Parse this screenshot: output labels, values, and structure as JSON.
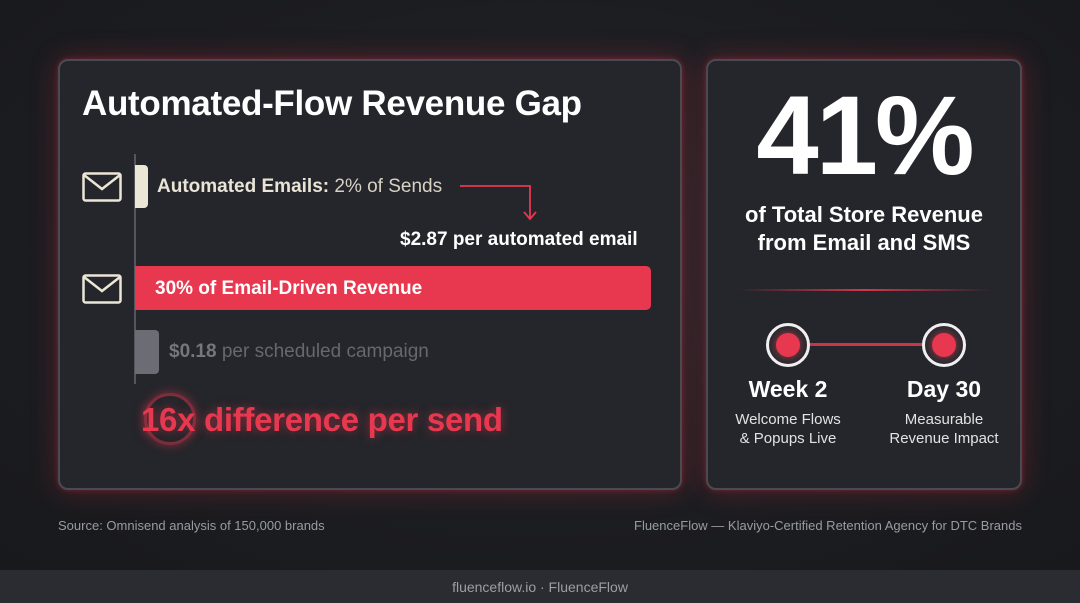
{
  "chart_data": {
    "type": "bar",
    "title": "Automated-Flow Revenue Gap",
    "categories": [
      "Automated Emails",
      "Email-Driven Revenue",
      "Scheduled Campaign"
    ],
    "values": [
      2,
      30,
      0
    ],
    "rows": [
      {
        "label": "Automated Emails:",
        "value_text": "2% of Sends",
        "per_send": "$2.87 per automated email"
      },
      {
        "label": "30% of Email-Driven Revenue"
      },
      {
        "amount": "$0.18",
        "suffix": "per scheduled campaign"
      }
    ],
    "annotation": "16x difference per send"
  },
  "stat": {
    "value": "41%",
    "line1": "of Total Store Revenue",
    "line2": "from Email and SMS"
  },
  "timeline": [
    {
      "title": "Week 2",
      "sub1": "Welcome Flows",
      "sub2": "& Popups Live"
    },
    {
      "title": "Day 30",
      "sub1": "Measurable",
      "sub2": "Revenue Impact"
    }
  ],
  "source": "Source: Omnisend analysis of 150,000 brands",
  "agency": "FluenceFlow — Klaviyo-Certified Retention Agency for DTC Brands",
  "footer": "fluenceflow.io · FluenceFlow",
  "colors": {
    "accent": "#e8384f",
    "cream": "#ece6d6",
    "muted": "#6c6c75",
    "card": "#25262b"
  },
  "icons": [
    "envelope-icon",
    "envelope-icon",
    "arrow-down-icon"
  ]
}
